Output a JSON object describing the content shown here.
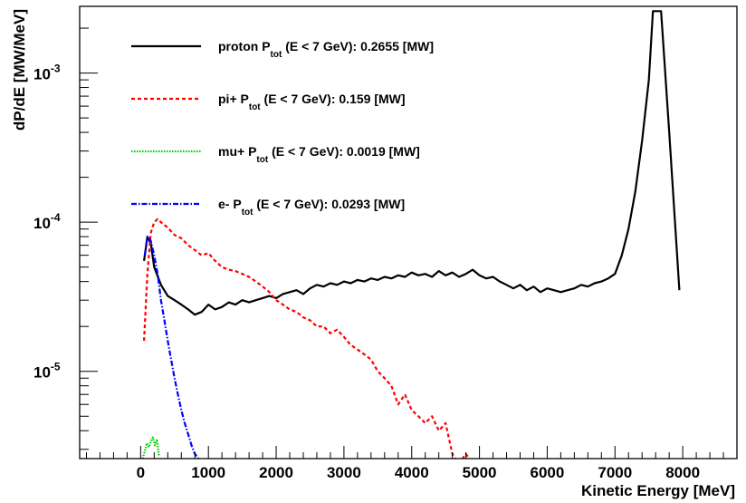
{
  "chart_data": {
    "type": "line",
    "title": "",
    "xlabel": "Kinetic Energy [MeV]",
    "ylabel": "dP/dE [MW/MeV]",
    "x_scale": "linear",
    "y_scale": "log",
    "xlim": [
      -900,
      8800
    ],
    "ylim": [
      2.6e-06,
      0.0028
    ],
    "x_ticks": [
      0,
      1000,
      2000,
      3000,
      4000,
      5000,
      6000,
      7000,
      8000
    ],
    "x_tick_labels": [
      "0",
      "1000",
      "2000",
      "3000",
      "4000",
      "5000",
      "6000",
      "7000",
      "8000"
    ],
    "y_ticks": [
      1e-05,
      0.0001,
      0.001
    ],
    "y_tick_labels": [
      {
        "base": "10",
        "exp": "-5"
      },
      {
        "base": "10",
        "exp": "-4"
      },
      {
        "base": "10",
        "exp": "-3"
      }
    ],
    "grid": false,
    "legend_position": "top-left",
    "series": [
      {
        "name": "proton",
        "legend": {
          "pre": "proton P",
          "sub": "tot",
          "post": " (E < 7 GeV): 0.2655 [MW]"
        },
        "color": "#000000",
        "dash": "",
        "x": [
          50,
          100,
          150,
          200,
          300,
          400,
          500,
          600,
          700,
          800,
          900,
          1000,
          1100,
          1200,
          1300,
          1400,
          1500,
          1600,
          1700,
          1800,
          1900,
          2000,
          2100,
          2200,
          2300,
          2400,
          2500,
          2600,
          2700,
          2800,
          2900,
          3000,
          3100,
          3200,
          3300,
          3400,
          3500,
          3600,
          3700,
          3800,
          3900,
          4000,
          4100,
          4200,
          4300,
          4400,
          4500,
          4600,
          4700,
          4800,
          4900,
          5000,
          5100,
          5200,
          5300,
          5400,
          5500,
          5600,
          5700,
          5800,
          5900,
          6000,
          6100,
          6200,
          6300,
          6400,
          6500,
          6600,
          6700,
          6800,
          6900,
          7000,
          7100,
          7200,
          7300,
          7400,
          7500,
          7560,
          7680,
          7800,
          7900,
          7950
        ],
        "y": [
          5.5e-05,
          8e-05,
          7.2e-05,
          5e-05,
          3.8e-05,
          3.2e-05,
          3e-05,
          2.8e-05,
          2.6e-05,
          2.4e-05,
          2.5e-05,
          2.8e-05,
          2.6e-05,
          2.7e-05,
          2.9e-05,
          2.8e-05,
          3e-05,
          2.9e-05,
          3e-05,
          3.1e-05,
          3.2e-05,
          3.1e-05,
          3.3e-05,
          3.4e-05,
          3.5e-05,
          3.3e-05,
          3.6e-05,
          3.8e-05,
          3.7e-05,
          3.9e-05,
          3.8e-05,
          4e-05,
          3.9e-05,
          4.1e-05,
          4e-05,
          4.2e-05,
          4.1e-05,
          4.3e-05,
          4.2e-05,
          4.4e-05,
          4.3e-05,
          4.6e-05,
          4.4e-05,
          4.5e-05,
          4.3e-05,
          4.7e-05,
          4.4e-05,
          4.6e-05,
          4.3e-05,
          4.5e-05,
          4.8e-05,
          4.4e-05,
          4.2e-05,
          4.3e-05,
          4e-05,
          3.8e-05,
          3.6e-05,
          3.8e-05,
          3.5e-05,
          3.7e-05,
          3.4e-05,
          3.6e-05,
          3.5e-05,
          3.4e-05,
          3.5e-05,
          3.6e-05,
          3.8e-05,
          3.7e-05,
          3.9e-05,
          4e-05,
          4.2e-05,
          4.5e-05,
          6e-05,
          9e-05,
          0.00016,
          0.00035,
          0.0009,
          0.0026,
          0.0026,
          0.0004,
          8e-05,
          3.5e-05
        ]
      },
      {
        "name": "pi+",
        "legend": {
          "pre": "pi+ P",
          "sub": "tot",
          "post": " (E < 7 GeV): 0.159 [MW]"
        },
        "color": "#ff0000",
        "dash": "4,3",
        "x": [
          50,
          100,
          150,
          200,
          250,
          300,
          400,
          500,
          600,
          700,
          800,
          900,
          1000,
          1100,
          1200,
          1300,
          1400,
          1500,
          1600,
          1700,
          1800,
          1900,
          2000,
          2100,
          2200,
          2300,
          2400,
          2500,
          2600,
          2700,
          2800,
          2900,
          3000,
          3100,
          3200,
          3300,
          3400,
          3500,
          3600,
          3700,
          3800,
          3900,
          4000,
          4100,
          4200,
          4300,
          4400,
          4500,
          4600,
          4700,
          4800,
          4900
        ],
        "y": [
          1.6e-05,
          4.5e-05,
          8.5e-05,
          0.0001,
          0.000105,
          0.0001,
          9.2e-05,
          8.2e-05,
          7.8e-05,
          7e-05,
          6.5e-05,
          6e-05,
          6.2e-05,
          5.5e-05,
          5e-05,
          4.8e-05,
          4.7e-05,
          4.5e-05,
          4.3e-05,
          4e-05,
          3.7e-05,
          3.4e-05,
          3e-05,
          2.8e-05,
          2.6e-05,
          2.5e-05,
          2.3e-05,
          2.2e-05,
          2e-05,
          2e-05,
          1.8e-05,
          1.9e-05,
          1.7e-05,
          1.5e-05,
          1.4e-05,
          1.3e-05,
          1.2e-05,
          1e-05,
          9e-06,
          8e-06,
          6e-06,
          7e-06,
          5.5e-06,
          5e-06,
          4.5e-06,
          5e-06,
          4e-06,
          4.5e-06,
          2.8e-06,
          2.4e-06,
          2.8e-06,
          2.4e-06
        ]
      },
      {
        "name": "mu+",
        "legend": {
          "pre": "mu+ P",
          "sub": "tot",
          "post": " (E < 7 GeV): 0.0019 [MW]"
        },
        "color": "#00cc00",
        "dash": "1.5,1.5",
        "x": [
          30,
          60,
          90,
          120,
          150,
          180,
          210,
          240,
          270
        ],
        "y": [
          2.6e-06,
          2.9e-06,
          3.3e-06,
          3.1e-06,
          3.4e-06,
          3.6e-06,
          3.2e-06,
          3.5e-06,
          2.7e-06
        ]
      },
      {
        "name": "e-",
        "legend": {
          "pre": "e- P",
          "sub": "tot",
          "post": " (E < 7 GeV): 0.0293 [MW]"
        },
        "color": "#0000ff",
        "dash": "6,2,1.5,2",
        "x": [
          60,
          100,
          150,
          200,
          250,
          300,
          350,
          400,
          450,
          500,
          550,
          600,
          650,
          700,
          750,
          800,
          850,
          900
        ],
        "y": [
          6e-05,
          8e-05,
          7.5e-05,
          6e-05,
          4.5e-05,
          3e-05,
          2.2e-05,
          1.6e-05,
          1.2e-05,
          9e-06,
          7e-06,
          5.5e-06,
          4.5e-06,
          3.8e-06,
          3.2e-06,
          2.8e-06,
          2.6e-06,
          2.5e-06
        ]
      }
    ]
  }
}
